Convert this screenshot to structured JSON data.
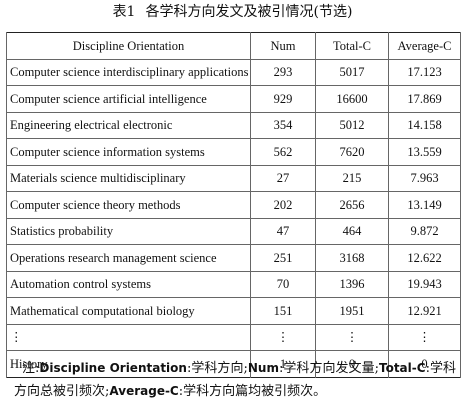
{
  "caption": {
    "number": "表1",
    "title": "各学科方向发文及被引情况(节选)"
  },
  "table": {
    "headers": [
      "Discipline Orientation",
      "Num",
      "Total-C",
      "Average-C"
    ],
    "rows": [
      [
        "Computer science interdisciplinary applications",
        "293",
        "5017",
        "17.123"
      ],
      [
        "Computer science artificial intelligence",
        "929",
        "16600",
        "17.869"
      ],
      [
        "Engineering electrical electronic",
        "354",
        "5012",
        "14.158"
      ],
      [
        "Computer science information systems",
        "562",
        "7620",
        "13.559"
      ],
      [
        "Materials science multidisciplinary",
        "27",
        "215",
        "7.963"
      ],
      [
        "Computer science theory methods",
        "202",
        "2656",
        "13.149"
      ],
      [
        "Statistics probability",
        "47",
        "464",
        "9.872"
      ],
      [
        "Operations research management science",
        "251",
        "3168",
        "12.622"
      ],
      [
        "Automation control systems",
        "70",
        "1396",
        "19.943"
      ],
      [
        "Mathematical computational biology",
        "151",
        "1951",
        "12.921"
      ],
      [
        "⋮",
        "⋮",
        "⋮",
        "⋮"
      ],
      [
        "History",
        "1",
        "0",
        "0"
      ]
    ]
  },
  "note": {
    "prefix": "注:",
    "t1": "Discipline Orientation",
    "d1": ":学科方向;",
    "t2": "Num",
    "d2": ":学科方向发文量;",
    "t3": "Total-C",
    "d3": ":学科方向总被引频次;",
    "t4": "Average-C",
    "d4": ":学科方向篇均被引频次。"
  }
}
